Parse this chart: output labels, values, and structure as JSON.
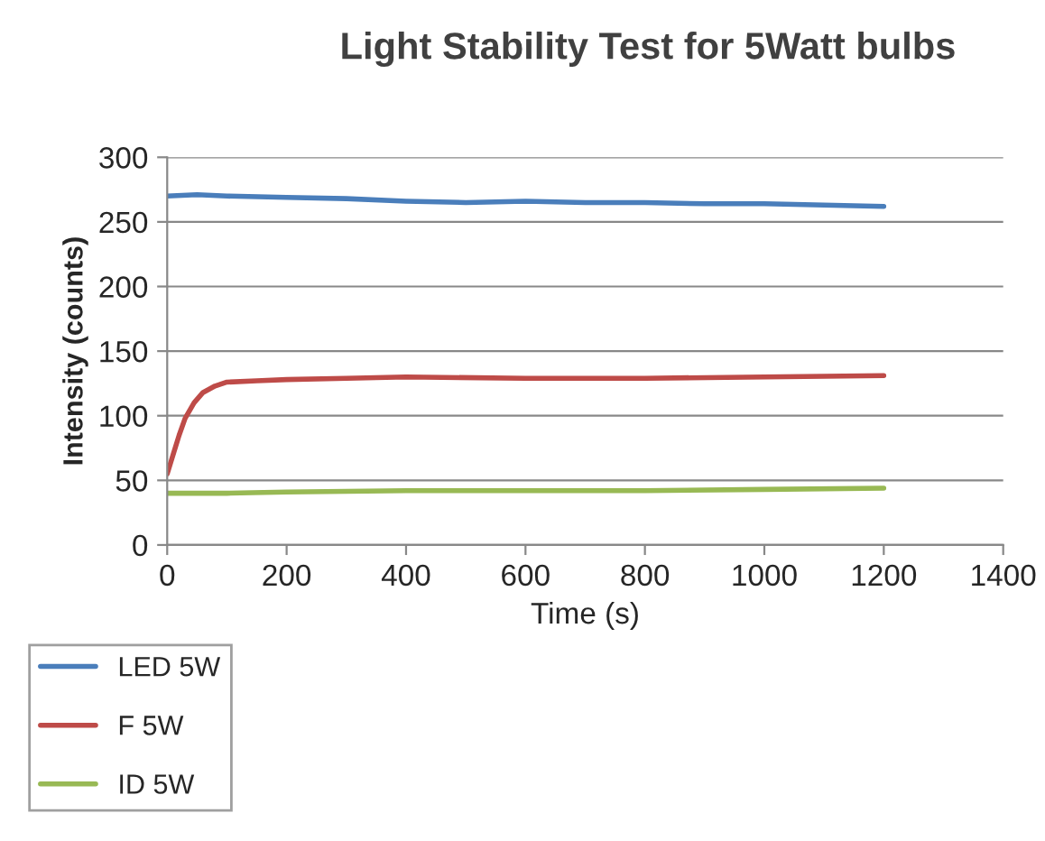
{
  "chart_data": {
    "type": "line",
    "title": "Light Stability Test for 5Watt bulbs",
    "xlabel": "Time (s)",
    "ylabel": "Intensity (counts)",
    "xlim": [
      0,
      1400
    ],
    "xticks": [
      0,
      200,
      400,
      600,
      800,
      1000,
      1200,
      1400
    ],
    "ylim": [
      0,
      300
    ],
    "yticks": [
      0,
      50,
      100,
      150,
      200,
      250,
      300
    ],
    "grid": "y",
    "legend": "bottom left",
    "line_style": "solid",
    "series": [
      {
        "name": "LED 5W",
        "color": "#4a7ebb",
        "x": [
          0,
          50,
          100,
          200,
          300,
          400,
          500,
          600,
          700,
          800,
          900,
          1000,
          1100,
          1200
        ],
        "values": [
          270,
          271,
          270,
          269,
          268,
          266,
          265,
          266,
          265,
          265,
          264,
          264,
          263,
          262
        ]
      },
      {
        "name": "F 5W",
        "color": "#be4b48",
        "x": [
          0,
          10,
          20,
          30,
          45,
          60,
          80,
          100,
          150,
          200,
          300,
          400,
          600,
          800,
          1000,
          1200
        ],
        "values": [
          55,
          70,
          85,
          98,
          110,
          118,
          123,
          126,
          127,
          128,
          129,
          130,
          129,
          129,
          130,
          131
        ]
      },
      {
        "name": "ID 5W",
        "color": "#98b954",
        "x": [
          0,
          100,
          200,
          400,
          600,
          800,
          1000,
          1200
        ],
        "values": [
          40,
          40,
          41,
          42,
          42,
          42,
          43,
          44
        ]
      }
    ]
  }
}
